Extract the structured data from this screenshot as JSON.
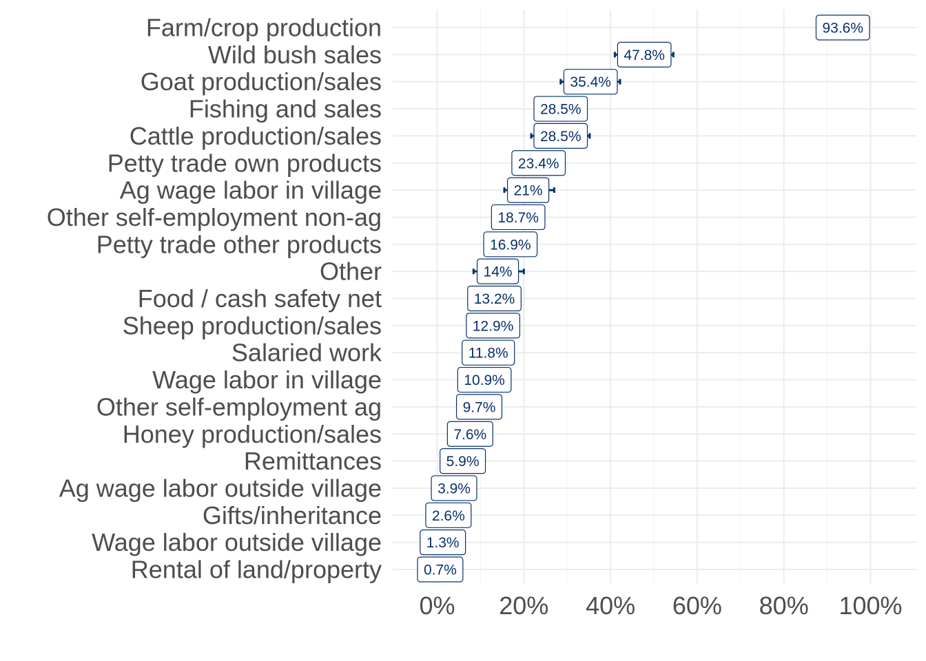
{
  "chart_data": {
    "type": "dot-errorbar",
    "title": "",
    "xlabel": "",
    "ylabel": "",
    "xlim": [
      -10,
      110
    ],
    "x_ticks": [
      0,
      20,
      40,
      60,
      80,
      100
    ],
    "x_tick_labels": [
      "0%",
      "20%",
      "40%",
      "60%",
      "80%",
      "100%"
    ],
    "grid": true,
    "colors": {
      "accent": "#08306b",
      "grid": "#ebebeb",
      "text": "#4d4d4d"
    },
    "categories": [
      "Farm/crop production",
      "Wild bush sales",
      "Goat production/sales",
      "Fishing and sales",
      "Cattle production/sales",
      "Petty trade own products",
      "Ag wage labor in village",
      "Other self-employment non-ag",
      "Petty trade other products",
      "Other",
      "Food / cash safety net",
      "Sheep production/sales",
      "Salaried work",
      "Wage labor in village",
      "Other self-employment ag",
      "Honey production/sales",
      "Remittances",
      "Ag wage labor outside village",
      "Gifts/inheritance",
      "Wage labor outside village",
      "Rental of land/property"
    ],
    "values": [
      93.6,
      47.8,
      35.4,
      28.5,
      28.5,
      23.4,
      21,
      18.7,
      16.9,
      14,
      13.2,
      12.9,
      11.8,
      10.9,
      9.7,
      7.6,
      5.9,
      3.9,
      2.6,
      1.3,
      0.7
    ],
    "value_labels": [
      "93.6%",
      "47.8%",
      "35.4%",
      "28.5%",
      "28.5%",
      "23.4%",
      "21%",
      "18.7%",
      "16.9%",
      "14%",
      "13.2%",
      "12.9%",
      "11.8%",
      "10.9%",
      "9.7%",
      "7.6%",
      "5.9%",
      "3.9%",
      "2.6%",
      "1.3%",
      "0.7%"
    ],
    "ci_low": [
      93.6,
      41.0,
      28.5,
      28.5,
      21.7,
      23.4,
      15.5,
      18.7,
      16.9,
      8.4,
      13.2,
      12.9,
      11.8,
      10.9,
      9.7,
      7.6,
      5.9,
      3.9,
      2.6,
      1.3,
      0.7
    ],
    "ci_high": [
      93.6,
      54.5,
      42.2,
      28.5,
      35.2,
      23.4,
      27.0,
      18.7,
      16.9,
      20.0,
      13.2,
      12.9,
      11.8,
      10.9,
      9.7,
      7.6,
      5.9,
      3.9,
      2.6,
      1.3,
      0.7
    ]
  }
}
